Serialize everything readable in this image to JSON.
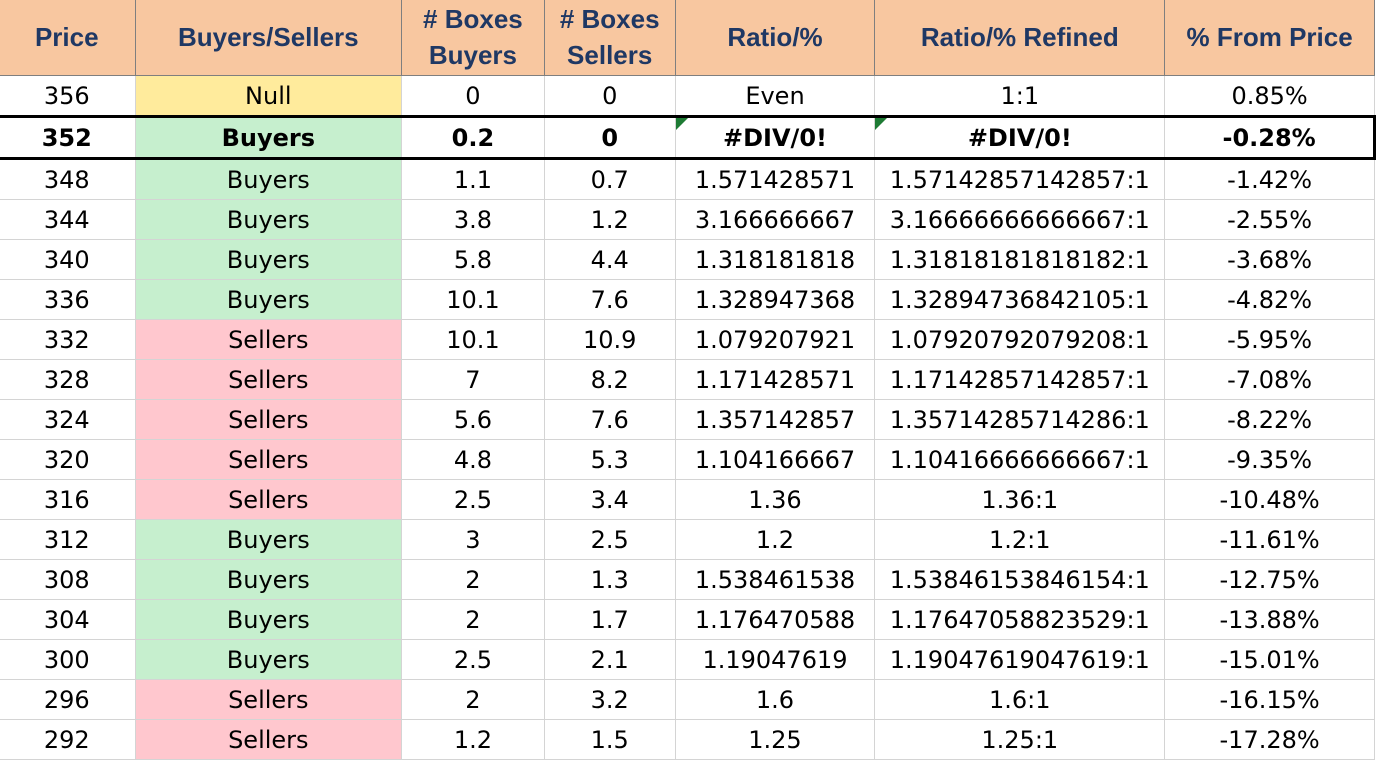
{
  "headers": {
    "price": "Price",
    "side": "Buyers/Sellers",
    "boxes_buyers_line1": "# Boxes",
    "boxes_buyers_line2": "Buyers",
    "boxes_sellers_line1": "# Boxes",
    "boxes_sellers_line2": "Sellers",
    "ratio": "Ratio/%",
    "ratio_refined": "Ratio/% Refined",
    "pct_from_price": "% From Price"
  },
  "colors": {
    "header_bg": "#f8c7a0",
    "header_text": "#1f3864",
    "buyers_bg": "#c6efce",
    "buyers_text": "#006100",
    "sellers_bg": "#ffc7ce",
    "sellers_text": "#9c0006",
    "null_bg": "#ffeb9c",
    "null_text": "#9c5700",
    "error_flag": "#1e7b34"
  },
  "rows": [
    {
      "price": "356",
      "side": "Null",
      "boxes_buyers": "0",
      "boxes_sellers": "0",
      "ratio": "Even",
      "ratio_refined": "1:1",
      "pct": "0.85%"
    },
    {
      "price": "352",
      "side": "Buyers",
      "boxes_buyers": "0.2",
      "boxes_sellers": "0",
      "ratio": "#DIV/0!",
      "ratio_refined": "#DIV/0!",
      "pct": "-0.28%"
    },
    {
      "price": "348",
      "side": "Buyers",
      "boxes_buyers": "1.1",
      "boxes_sellers": "0.7",
      "ratio": "1.571428571",
      "ratio_refined": "1.57142857142857:1",
      "pct": "-1.42%"
    },
    {
      "price": "344",
      "side": "Buyers",
      "boxes_buyers": "3.8",
      "boxes_sellers": "1.2",
      "ratio": "3.166666667",
      "ratio_refined": "3.16666666666667:1",
      "pct": "-2.55%"
    },
    {
      "price": "340",
      "side": "Buyers",
      "boxes_buyers": "5.8",
      "boxes_sellers": "4.4",
      "ratio": "1.318181818",
      "ratio_refined": "1.31818181818182:1",
      "pct": "-3.68%"
    },
    {
      "price": "336",
      "side": "Buyers",
      "boxes_buyers": "10.1",
      "boxes_sellers": "7.6",
      "ratio": "1.328947368",
      "ratio_refined": "1.32894736842105:1",
      "pct": "-4.82%"
    },
    {
      "price": "332",
      "side": "Sellers",
      "boxes_buyers": "10.1",
      "boxes_sellers": "10.9",
      "ratio": "1.079207921",
      "ratio_refined": "1.07920792079208:1",
      "pct": "-5.95%"
    },
    {
      "price": "328",
      "side": "Sellers",
      "boxes_buyers": "7",
      "boxes_sellers": "8.2",
      "ratio": "1.171428571",
      "ratio_refined": "1.17142857142857:1",
      "pct": "-7.08%"
    },
    {
      "price": "324",
      "side": "Sellers",
      "boxes_buyers": "5.6",
      "boxes_sellers": "7.6",
      "ratio": "1.357142857",
      "ratio_refined": "1.35714285714286:1",
      "pct": "-8.22%"
    },
    {
      "price": "320",
      "side": "Sellers",
      "boxes_buyers": "4.8",
      "boxes_sellers": "5.3",
      "ratio": "1.104166667",
      "ratio_refined": "1.10416666666667:1",
      "pct": "-9.35%"
    },
    {
      "price": "316",
      "side": "Sellers",
      "boxes_buyers": "2.5",
      "boxes_sellers": "3.4",
      "ratio": "1.36",
      "ratio_refined": "1.36:1",
      "pct": "-10.48%"
    },
    {
      "price": "312",
      "side": "Buyers",
      "boxes_buyers": "3",
      "boxes_sellers": "2.5",
      "ratio": "1.2",
      "ratio_refined": "1.2:1",
      "pct": "-11.61%"
    },
    {
      "price": "308",
      "side": "Buyers",
      "boxes_buyers": "2",
      "boxes_sellers": "1.3",
      "ratio": "1.538461538",
      "ratio_refined": "1.53846153846154:1",
      "pct": "-12.75%"
    },
    {
      "price": "304",
      "side": "Buyers",
      "boxes_buyers": "2",
      "boxes_sellers": "1.7",
      "ratio": "1.176470588",
      "ratio_refined": "1.17647058823529:1",
      "pct": "-13.88%"
    },
    {
      "price": "300",
      "side": "Buyers",
      "boxes_buyers": "2.5",
      "boxes_sellers": "2.1",
      "ratio": "1.19047619",
      "ratio_refined": "1.19047619047619:1",
      "pct": "-15.01%"
    },
    {
      "price": "296",
      "side": "Sellers",
      "boxes_buyers": "2",
      "boxes_sellers": "3.2",
      "ratio": "1.6",
      "ratio_refined": "1.6:1",
      "pct": "-16.15%"
    },
    {
      "price": "292",
      "side": "Sellers",
      "boxes_buyers": "1.2",
      "boxes_sellers": "1.5",
      "ratio": "1.25",
      "ratio_refined": "1.25:1",
      "pct": "-17.28%"
    }
  ]
}
